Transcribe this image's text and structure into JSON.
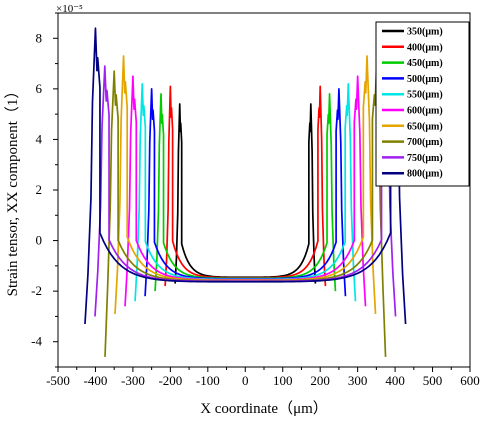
{
  "chart_data": {
    "type": "line",
    "title": "",
    "xlabel": "X coordinate（μm）",
    "ylabel": "Strain tensor, XX component（1）",
    "y_exponent_label": "×10⁻⁵",
    "xlim": [
      -500,
      600
    ],
    "ylim": [
      -5,
      9
    ],
    "x_ticks": [
      "-500",
      "-400",
      "-300",
      "-200",
      "-100",
      "0",
      "100",
      "200",
      "300",
      "400",
      "500",
      "600"
    ],
    "y_ticks": [
      "-4",
      "-2",
      "0",
      "2",
      "4",
      "6",
      "8"
    ],
    "legend_position": "top-right",
    "grid": false,
    "series": [
      {
        "name": "350(μm)",
        "color": "#000000",
        "half_width": 175,
        "peak": 5.4,
        "dip": -1.7,
        "min": -1.45
      },
      {
        "name": "400(μm)",
        "color": "#ff0000",
        "half_width": 200,
        "peak": 6.1,
        "dip": -1.8,
        "min": -1.47
      },
      {
        "name": "450(μm)",
        "color": "#00cc00",
        "half_width": 225,
        "peak": 5.8,
        "dip": -2.0,
        "min": -1.49
      },
      {
        "name": "500(μm)",
        "color": "#0000ff",
        "half_width": 250,
        "peak": 6.0,
        "dip": -2.2,
        "min": -1.51
      },
      {
        "name": "550(μm)",
        "color": "#00e5e5",
        "half_width": 275,
        "peak": 6.2,
        "dip": -2.4,
        "min": -1.53
      },
      {
        "name": "600(μm)",
        "color": "#ff00ff",
        "half_width": 300,
        "peak": 6.5,
        "dip": -2.6,
        "min": -1.55
      },
      {
        "name": "650(μm)",
        "color": "#e5a500",
        "half_width": 325,
        "peak": 7.3,
        "dip": -2.9,
        "min": -1.57
      },
      {
        "name": "700(μm)",
        "color": "#808000",
        "half_width": 350,
        "peak": 6.7,
        "dip": -4.6,
        "min": -1.59
      },
      {
        "name": "750(μm)",
        "color": "#a020f0",
        "half_width": 375,
        "peak": 6.9,
        "dip": -3.0,
        "min": -1.61
      },
      {
        "name": "800(μm)",
        "color": "#000080",
        "half_width": 400,
        "peak": 8.4,
        "dip": -3.3,
        "min": -1.63
      }
    ]
  }
}
